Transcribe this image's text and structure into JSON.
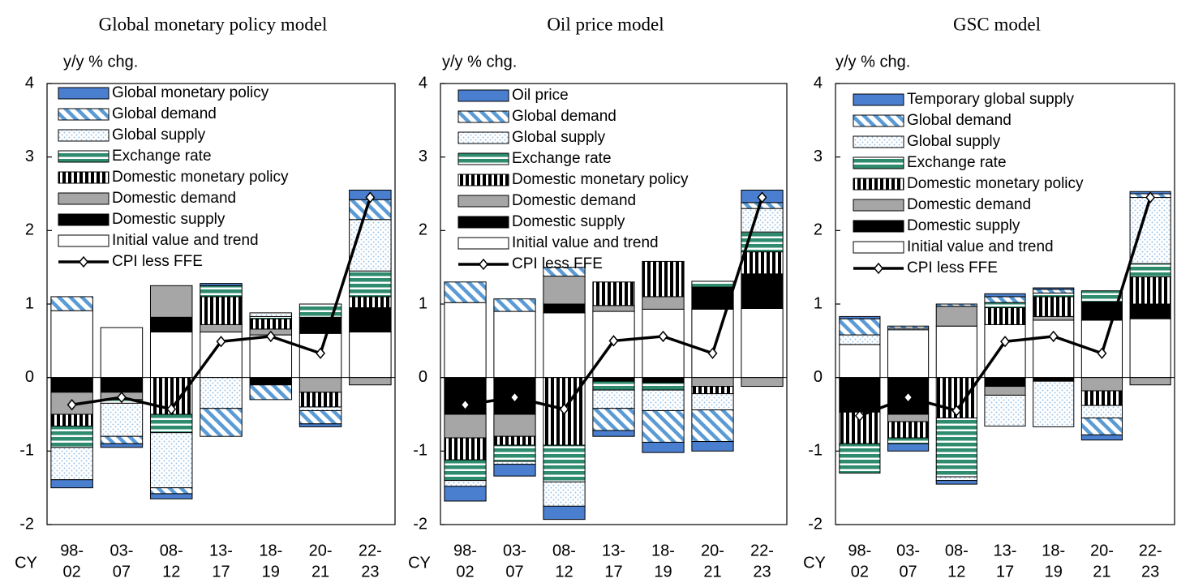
{
  "chart_data": [
    {
      "type": "bar",
      "stacked": true,
      "title": "Global monetary policy model",
      "y_label": "y/y % chg.",
      "x_label": "CY",
      "categories": [
        [
          "98-",
          "02"
        ],
        [
          "03-",
          "07"
        ],
        [
          "08-",
          "12"
        ],
        [
          "13-",
          "17"
        ],
        [
          "18-",
          "19"
        ],
        [
          "20-",
          "21"
        ],
        [
          "22-",
          "23"
        ]
      ],
      "ylim": [
        -2,
        4
      ],
      "yticks": [
        -2,
        -1,
        0,
        1,
        2,
        3,
        4
      ],
      "series": [
        {
          "name": "Global monetary policy",
          "color": "#4a7fcf",
          "pattern": "solid",
          "values": [
            -0.11,
            -0.05,
            -0.07,
            0.03,
            0,
            -0.04,
            0.13
          ]
        },
        {
          "name": "Global demand",
          "color": "#5b9bd5",
          "pattern": "diagonal",
          "values": [
            0.19,
            -0.1,
            -0.08,
            -0.38,
            -0.2,
            -0.18,
            0.27
          ]
        },
        {
          "name": "Global supply",
          "color": "#9dc3e6",
          "pattern": "dots",
          "values": [
            -0.44,
            -0.45,
            -0.75,
            -0.42,
            0.05,
            -0.05,
            0.7
          ]
        },
        {
          "name": "Exchange rate",
          "color": "#2e8b6e",
          "pattern": "hstripes",
          "values": [
            -0.29,
            -0.05,
            -0.25,
            0.15,
            0.03,
            0.18,
            0.35
          ]
        },
        {
          "name": "Domestic monetary policy",
          "color": "#000000",
          "pattern": "vstripes",
          "values": [
            -0.16,
            0,
            -0.5,
            0.38,
            0.14,
            -0.2,
            0.15
          ]
        },
        {
          "name": "Domestic demand",
          "color": "#a6a6a6",
          "pattern": "solid",
          "values": [
            -0.3,
            -0.1,
            0.43,
            0.1,
            0.08,
            -0.2,
            -0.1
          ]
        },
        {
          "name": "Domestic supply",
          "color": "#000000",
          "pattern": "solid",
          "values": [
            -0.2,
            -0.2,
            0.2,
            0,
            -0.1,
            0.22,
            0.33
          ]
        },
        {
          "name": "Initial value and trend",
          "color": "#ffffff",
          "pattern": "solid",
          "values": [
            0.91,
            0.68,
            0.62,
            0.62,
            0.58,
            0.6,
            0.62
          ]
        }
      ],
      "line": {
        "name": "CPI less FFE",
        "color": "#000000",
        "values": [
          -0.37,
          -0.27,
          -0.43,
          0.49,
          0.56,
          0.33,
          2.45
        ]
      }
    },
    {
      "type": "bar",
      "stacked": true,
      "title": "Oil price model",
      "y_label": "y/y % chg.",
      "x_label": "CY",
      "categories": [
        [
          "98-",
          "02"
        ],
        [
          "03-",
          "07"
        ],
        [
          "08-",
          "12"
        ],
        [
          "13-",
          "17"
        ],
        [
          "18-",
          "19"
        ],
        [
          "20-",
          "21"
        ],
        [
          "22-",
          "23"
        ]
      ],
      "ylim": [
        -2,
        4
      ],
      "yticks": [
        -2,
        -1,
        0,
        1,
        2,
        3,
        4
      ],
      "series": [
        {
          "name": "Oil price",
          "color": "#4a7fcf",
          "pattern": "solid",
          "values": [
            -0.2,
            -0.16,
            -0.18,
            -0.08,
            -0.14,
            -0.13,
            0.17
          ]
        },
        {
          "name": "Global demand",
          "color": "#5b9bd5",
          "pattern": "diagonal",
          "values": [
            0.28,
            0.17,
            0.12,
            -0.3,
            -0.43,
            -0.43,
            0.08
          ]
        },
        {
          "name": "Global supply",
          "color": "#9dc3e6",
          "pattern": "dots",
          "values": [
            -0.08,
            -0.04,
            -0.33,
            -0.25,
            -0.28,
            -0.22,
            0.32
          ]
        },
        {
          "name": "Exchange rate",
          "color": "#2e8b6e",
          "pattern": "hstripes",
          "values": [
            -0.28,
            -0.22,
            -0.5,
            -0.12,
            -0.1,
            0.08,
            0.27
          ]
        },
        {
          "name": "Domestic monetary policy",
          "color": "#000000",
          "pattern": "vstripes",
          "values": [
            -0.3,
            -0.12,
            -0.92,
            0.32,
            0.48,
            -0.1,
            0.3
          ]
        },
        {
          "name": "Domestic demand",
          "color": "#a6a6a6",
          "pattern": "solid",
          "values": [
            -0.32,
            -0.3,
            0.38,
            0.08,
            0.17,
            -0.12,
            -0.12
          ]
        },
        {
          "name": "Domestic supply",
          "color": "#000000",
          "pattern": "solid",
          "values": [
            -0.5,
            -0.5,
            0.12,
            -0.05,
            -0.07,
            0.3,
            0.47
          ]
        },
        {
          "name": "Initial value and trend",
          "color": "#ffffff",
          "pattern": "solid",
          "values": [
            1.02,
            0.9,
            0.88,
            0.9,
            0.93,
            0.93,
            0.94
          ]
        }
      ],
      "line": {
        "name": "CPI less FFE",
        "color": "#000000",
        "values": [
          -0.37,
          -0.27,
          -0.43,
          0.5,
          0.56,
          0.33,
          2.45
        ]
      }
    },
    {
      "type": "bar",
      "stacked": true,
      "title": "GSC model",
      "y_label": "y/y % chg.",
      "x_label": "CY",
      "categories": [
        [
          "98-",
          "02"
        ],
        [
          "03-",
          "07"
        ],
        [
          "08-",
          "12"
        ],
        [
          "13-",
          "17"
        ],
        [
          "18-",
          "19"
        ],
        [
          "20-",
          "21"
        ],
        [
          "22-",
          "23"
        ]
      ],
      "ylim": [
        -2,
        4
      ],
      "yticks": [
        -2,
        -1,
        0,
        1,
        2,
        3,
        4
      ],
      "series": [
        {
          "name": "Temporary global supply",
          "color": "#4a7fcf",
          "pattern": "solid",
          "values": [
            0.03,
            -0.1,
            -0.05,
            0.04,
            0.02,
            -0.07,
            0.03
          ]
        },
        {
          "name": "Global demand",
          "color": "#5b9bd5",
          "pattern": "diagonal",
          "values": [
            0.22,
            0.03,
            0.03,
            0.08,
            0.05,
            -0.23,
            0.05
          ]
        },
        {
          "name": "Global supply",
          "color": "#9dc3e6",
          "pattern": "dots",
          "values": [
            0.13,
            0.02,
            -0.05,
            -0.42,
            -0.62,
            -0.17,
            0.9
          ]
        },
        {
          "name": "Exchange rate",
          "color": "#2e8b6e",
          "pattern": "hstripes",
          "values": [
            -0.4,
            -0.08,
            -0.8,
            0.07,
            0.05,
            0.15,
            0.18
          ]
        },
        {
          "name": "Domestic monetary policy",
          "color": "#000000",
          "pattern": "vstripes",
          "values": [
            -0.43,
            -0.22,
            -0.55,
            0.23,
            0.27,
            -0.2,
            0.37
          ]
        },
        {
          "name": "Domestic demand",
          "color": "#a6a6a6",
          "pattern": "solid",
          "values": [
            0,
            -0.1,
            0.27,
            -0.12,
            0.05,
            -0.18,
            -0.1
          ]
        },
        {
          "name": "Domestic supply",
          "color": "#000000",
          "pattern": "solid",
          "values": [
            -0.47,
            -0.5,
            0,
            -0.12,
            -0.05,
            0.25,
            0.2
          ]
        },
        {
          "name": "Initial value and trend",
          "color": "#ffffff",
          "pattern": "solid",
          "values": [
            0.45,
            0.65,
            0.7,
            0.72,
            0.78,
            0.78,
            0.8
          ]
        }
      ],
      "line": {
        "name": "CPI less FFE",
        "color": "#000000",
        "values": [
          -0.52,
          -0.27,
          -0.45,
          0.49,
          0.56,
          0.33,
          2.45
        ]
      }
    }
  ]
}
